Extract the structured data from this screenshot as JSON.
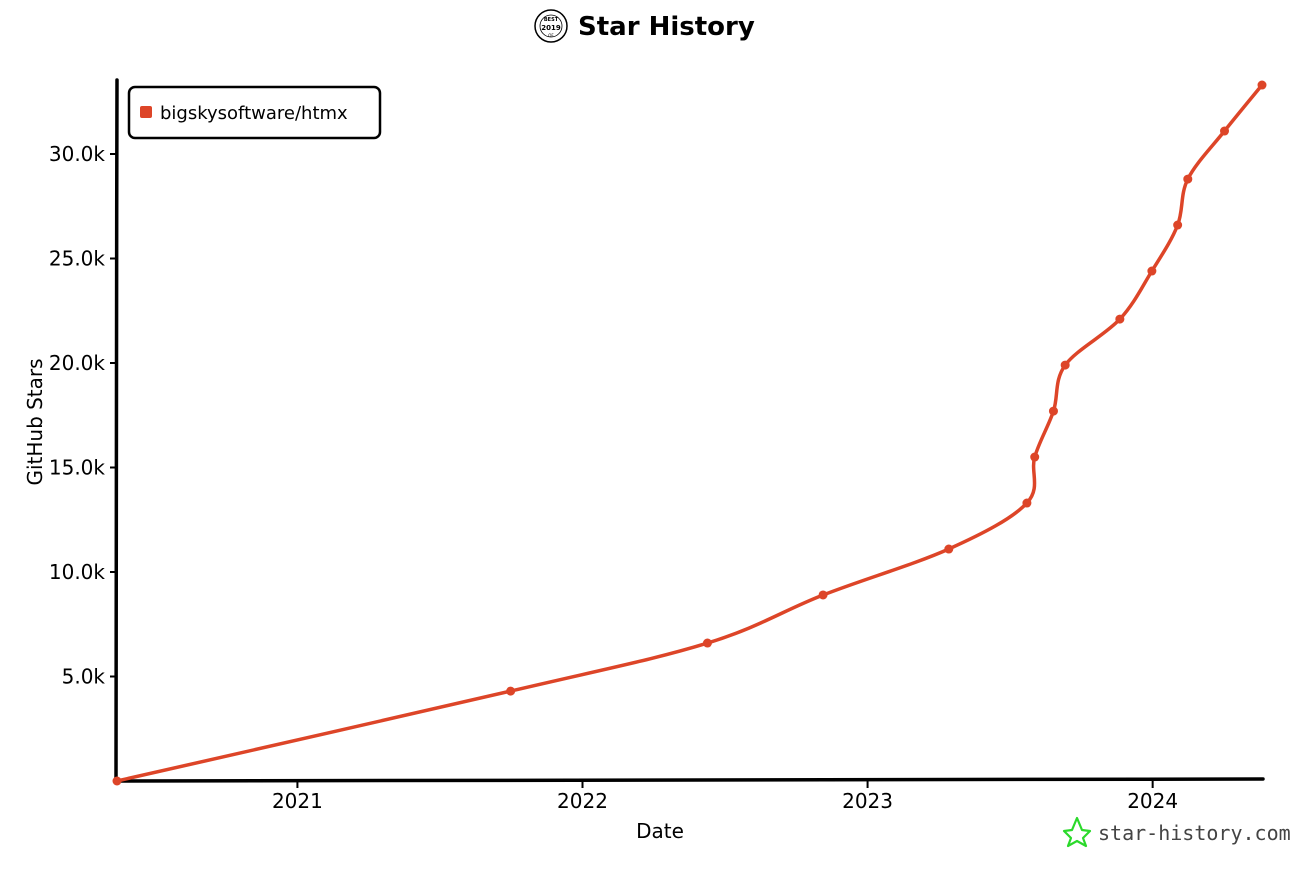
{
  "colors": {
    "series": "#dd4528",
    "axis": "#000000",
    "watermark_star": "#2bd92b"
  },
  "badge": {
    "lines": [
      "BEST",
      "2019",
      "OF"
    ]
  },
  "watermark": {
    "text": "star-history.com",
    "icon": "star-outline-icon"
  },
  "chart_data": {
    "type": "line",
    "title": "Star History",
    "xlabel": "Date",
    "ylabel": "GitHub Stars",
    "x_ticks": [
      "2021",
      "2022",
      "2023",
      "2024"
    ],
    "y_ticks": [
      "5.0k",
      "10.0k",
      "15.0k",
      "20.0k",
      "25.0k",
      "30.0k"
    ],
    "ylim": [
      0,
      33500
    ],
    "xlim": [
      "2020-05-15",
      "2024-05-20"
    ],
    "legend_position": "top-left",
    "series": [
      {
        "name": "bigskysoftware/htmx",
        "points": [
          [
            "2020-05-15",
            0
          ],
          [
            "2021-10-01",
            4300
          ],
          [
            "2022-06-10",
            6600
          ],
          [
            "2022-11-05",
            8900
          ],
          [
            "2023-04-15",
            11100
          ],
          [
            "2023-07-24",
            13300
          ],
          [
            "2023-08-03",
            15500
          ],
          [
            "2023-08-27",
            17700
          ],
          [
            "2023-09-11",
            19900
          ],
          [
            "2023-11-20",
            22100
          ],
          [
            "2023-12-31",
            24400
          ],
          [
            "2024-02-02",
            26600
          ],
          [
            "2024-02-15",
            28800
          ],
          [
            "2024-04-02",
            31100
          ],
          [
            "2024-05-20",
            33300
          ]
        ]
      }
    ]
  }
}
